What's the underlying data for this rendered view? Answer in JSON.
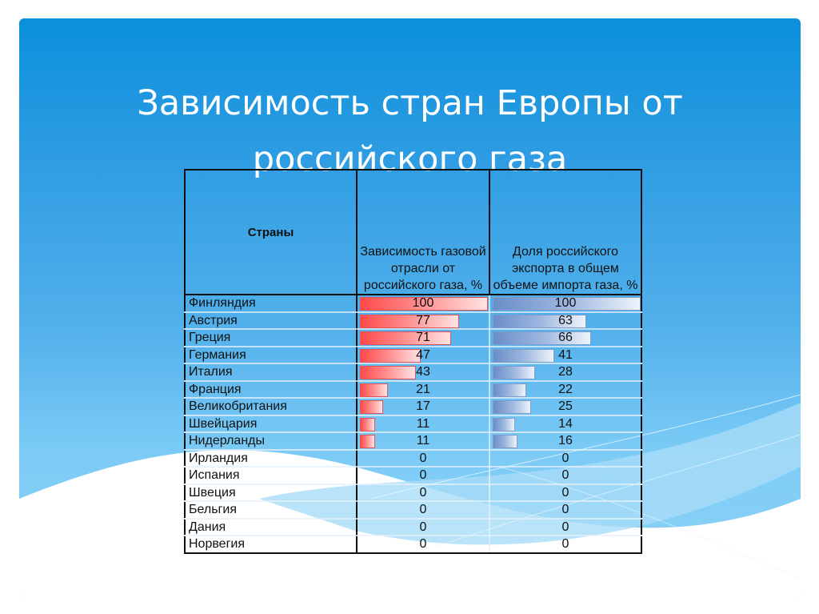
{
  "slide": {
    "title_line1": "Зависимость стран Европы от",
    "title_line2": "российского газа"
  },
  "table": {
    "headers": {
      "country": "Страны",
      "dependence": "Зависимость газовой отрасли от российского газа, %",
      "share": "Доля российского экспорта в общем объеме импорта газа, %"
    },
    "rows": [
      {
        "country": "Финляндия",
        "dependence": 100,
        "share": 100
      },
      {
        "country": "Австрия",
        "dependence": 77,
        "share": 63
      },
      {
        "country": "Греция",
        "dependence": 71,
        "share": 66
      },
      {
        "country": "Германия",
        "dependence": 47,
        "share": 41
      },
      {
        "country": "Италия",
        "dependence": 43,
        "share": 28
      },
      {
        "country": "Франция",
        "dependence": 21,
        "share": 22
      },
      {
        "country": "Великобритания",
        "dependence": 17,
        "share": 25
      },
      {
        "country": "Швейцария",
        "dependence": 11,
        "share": 14
      },
      {
        "country": "Нидерланды",
        "dependence": 11,
        "share": 16
      },
      {
        "country": "Ирландия",
        "dependence": 0,
        "share": 0
      },
      {
        "country": "Испания",
        "dependence": 0,
        "share": 0
      },
      {
        "country": "Швеция",
        "dependence": 0,
        "share": 0
      },
      {
        "country": "Бельгия",
        "dependence": 0,
        "share": 0
      },
      {
        "country": "Дания",
        "dependence": 0,
        "share": 0
      },
      {
        "country": "Норвегия",
        "dependence": 0,
        "share": 0
      }
    ]
  },
  "colors": {
    "dependence_bar": "#ff4a4a",
    "share_bar": "#6a8ec9",
    "background_top": "#0a90dc",
    "background_bottom": "#8fd4f8"
  }
}
